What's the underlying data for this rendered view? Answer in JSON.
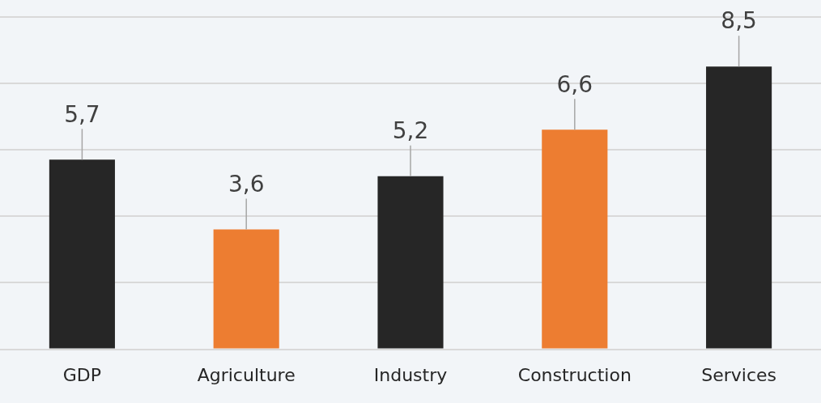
{
  "chart_data": {
    "type": "bar",
    "categories": [
      "GDP",
      "Agriculture",
      "Industry",
      "Construction",
      "Services"
    ],
    "values": [
      5.7,
      3.6,
      5.2,
      6.6,
      8.5
    ],
    "colors": [
      "#262626",
      "#ed7d31",
      "#262626",
      "#ed7d31",
      "#262626"
    ],
    "value_labels": [
      "5,7",
      "3,6",
      "5,2",
      "6,6",
      "8,5"
    ],
    "ylim": [
      0,
      10.5
    ],
    "yticks": [
      {
        "value": 0,
        "label": null
      },
      {
        "value": 2,
        "label": null
      },
      {
        "value": 4,
        "label": null
      },
      {
        "value": 6,
        "label": null
      },
      {
        "value": 8,
        "label": null
      },
      {
        "value": 10,
        "label": null
      }
    ],
    "tick_labels": "x",
    "grid": "y",
    "legend": false
  }
}
